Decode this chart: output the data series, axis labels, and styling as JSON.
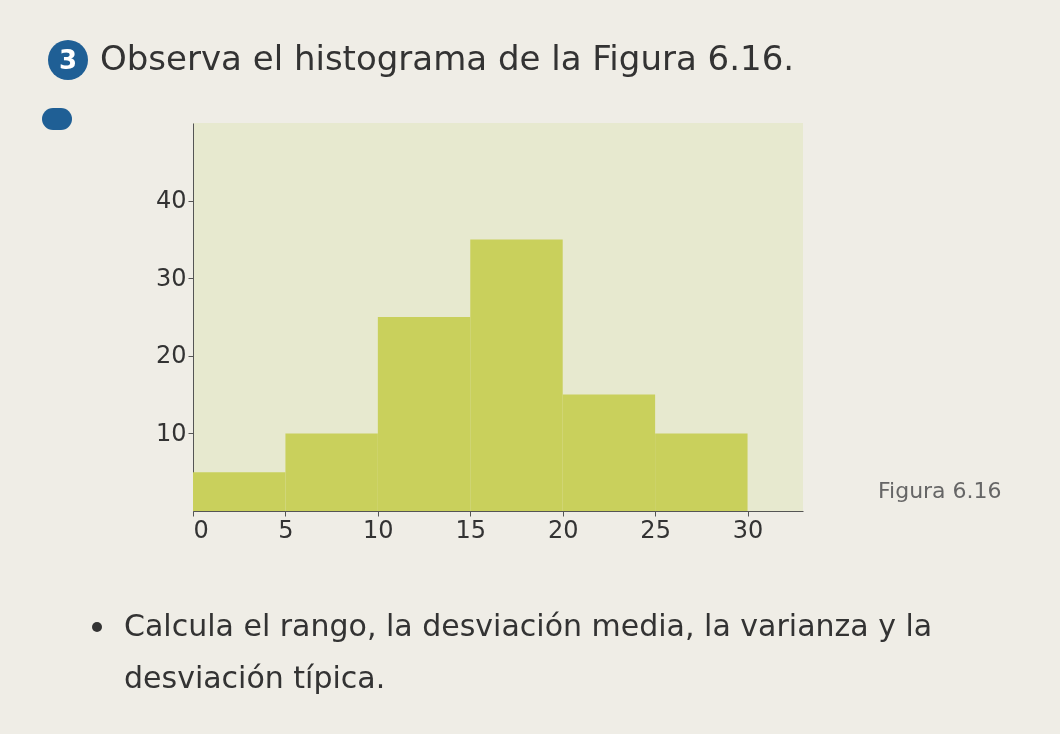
{
  "chart_data": {
    "type": "histogram",
    "title": "Observa el histograma de la Figura 6.16.",
    "annotations": [
      "3",
      "Figura 6.16",
      "Calcula el rango, la desviación media, la varianza y la desviación típica."
    ],
    "bins": [
      0,
      5,
      10,
      15,
      20,
      25,
      30
    ],
    "values": [
      5,
      10,
      25,
      35,
      15,
      10
    ],
    "color": "#c9d05c",
    "xlim": [
      0,
      33
    ],
    "xticks": [
      0,
      5,
      10,
      15,
      20,
      25,
      30
    ],
    "ylim": [
      0,
      50
    ],
    "yticks": [
      10,
      20,
      30,
      40
    ],
    "grid": false
  }
}
